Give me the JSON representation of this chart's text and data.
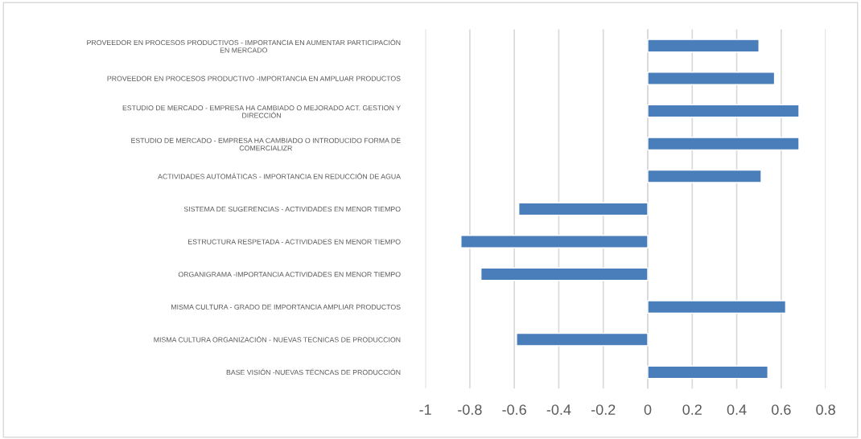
{
  "chart_data": {
    "type": "bar",
    "orientation": "horizontal",
    "categories": [
      "PROVEEDOR EN PROCESOS PRODUCTIVOS - IMPORTANCIA EN AUMENTAR PARTICIPACIÓN\nEN MERCADO",
      "PROVEEDOR EN PROCESOS PRODUCTIVO -IMPORTANCIA EN AMPLUAR PRODUCTOS",
      "ESTUDIO DE MERCADO - EMPRESA HA CAMBIADO O MEJORADO ACT. GESTION Y\nDIRECCIÓN",
      "ESTUDIO DE MERCADO - EMPRESA HA CAMBIADO O INTRODUCIDO FORMA DE\nCOMERCIALIZR",
      "ACTIVIDADES AUTOMÁTICAS - IMPORTANCIA EN REDUCCIÓN DE AGUA",
      "SISTEMA DE SUGERENCIAS - ACTIVIDADES EN MENOR TIEMPO",
      "ESTRUCTURA RESPETADA - ACTIVIDADES EN MENOR TIEMPO",
      "ORGANIGRAMA -IMPORTANCIA ACTIVIDADES EN MENOR TIEMPO",
      "MISMA CULTURA - GRADO DE IMPORTANCIA AMPLIAR PRODUCTOS",
      "MISMA CULTURA ORGANIZACIÓN - NUEVAS TECNICAS DE PRODUCCION",
      "BASE VISIÓN -NUEVAS TÉCNCAS DE PRODUCCIÓN"
    ],
    "values": [
      0.5,
      0.57,
      0.68,
      0.68,
      0.51,
      -0.58,
      -0.84,
      -0.75,
      0.62,
      -0.59,
      0.54
    ],
    "color": "#4a7ebb",
    "xlim": [
      -1,
      0.8
    ],
    "xticks": [
      -1,
      -0.8,
      -0.6,
      -0.4,
      -0.2,
      0,
      0.2,
      0.4,
      0.6,
      0.8
    ],
    "grid": "x"
  }
}
